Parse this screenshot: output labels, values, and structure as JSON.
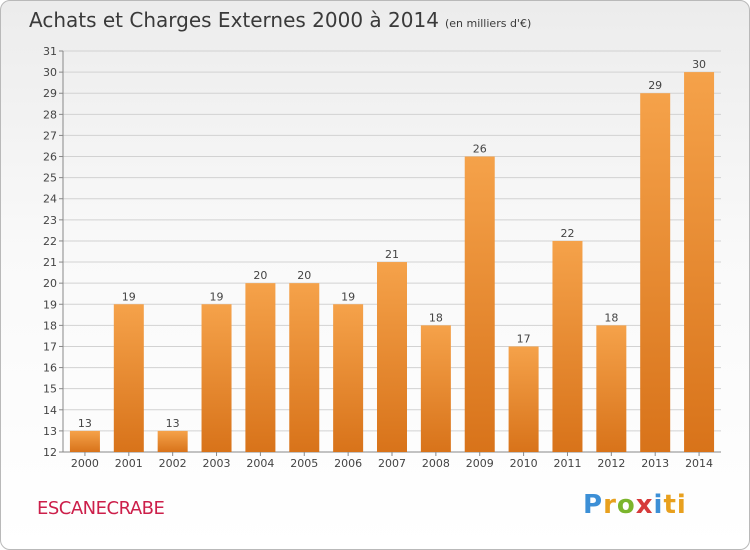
{
  "title": "Achats et Charges Externes 2000 à 2014",
  "units": "(en milliers d'€)",
  "commune": "ESCANECRABE",
  "logo": [
    "P",
    "r",
    "o",
    "x",
    "i",
    "ti"
  ],
  "colors": {
    "bar_light": "#f5a24a",
    "bar_dark": "#d8731a",
    "grid": "#d2d2d2",
    "commune": "#cc1f4a"
  },
  "chart_data": {
    "type": "bar",
    "categories": [
      "2000",
      "2001",
      "2002",
      "2003",
      "2004",
      "2005",
      "2006",
      "2007",
      "2008",
      "2009",
      "2010",
      "2011",
      "2012",
      "2013",
      "2014"
    ],
    "values": [
      13,
      19,
      13,
      19,
      20,
      20,
      19,
      21,
      18,
      26,
      17,
      22,
      18,
      29,
      30
    ],
    "title": "Achats et Charges Externes 2000 à 2014",
    "xlabel": "",
    "ylabel": "",
    "ylim": [
      12,
      31
    ],
    "yticks": [
      12,
      13,
      14,
      15,
      16,
      17,
      18,
      19,
      20,
      21,
      22,
      23,
      24,
      25,
      26,
      27,
      28,
      29,
      30,
      31
    ],
    "grid": true
  }
}
